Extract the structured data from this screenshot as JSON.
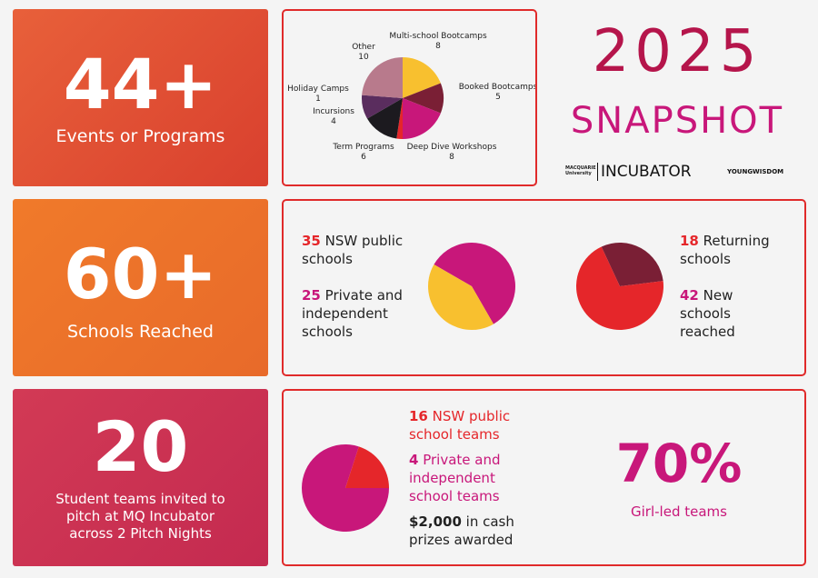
{
  "header": {
    "year": "2025",
    "label": "SNAPSHOT",
    "logos": [
      "MACQUARIE University",
      "INCUBATOR",
      "YOUNGWISDOM"
    ]
  },
  "stats": [
    {
      "value": "44+",
      "label": "Events or Programs"
    },
    {
      "value": "60+",
      "label": "Schools Reached"
    },
    {
      "value": "20",
      "label": "Student teams invited to pitch at MQ Incubator across 2 Pitch Nights"
    }
  ],
  "events_pie": {
    "type": "pie",
    "categories": [
      "Multi-school Bootcamps",
      "Booked Bootcamps",
      "Deep Dive Workshops",
      "Holiday Camps",
      "Term Programs",
      "Incursions",
      "Other"
    ],
    "values": [
      8,
      5,
      8,
      1,
      6,
      4,
      10
    ],
    "colors": [
      "#f8c02f",
      "#7a1f35",
      "#c8177a",
      "#e5262a",
      "#1c1a1f",
      "#5a2d5e",
      "#b87a8c"
    ]
  },
  "school_type_pie": {
    "type": "pie",
    "categories": [
      "NSW public schools",
      "Private and independent schools"
    ],
    "values": [
      35,
      25
    ],
    "colors": [
      "#c8177a",
      "#f8c02f"
    ]
  },
  "returning_pie": {
    "type": "pie",
    "categories": [
      "Returning schools",
      "New schools reached"
    ],
    "values": [
      18,
      42
    ],
    "colors": [
      "#7a1f35",
      "#e5262a"
    ]
  },
  "teams_pie": {
    "type": "pie",
    "categories": [
      "NSW public school teams",
      "Private and independent school teams"
    ],
    "values": [
      16,
      4
    ],
    "colors": [
      "#c8177a",
      "#e5262a"
    ]
  },
  "prizes": {
    "amount": "$2,000",
    "label": "in cash prizes awarded"
  },
  "girl_led": {
    "value": "70%",
    "label": "Girl-led teams"
  }
}
